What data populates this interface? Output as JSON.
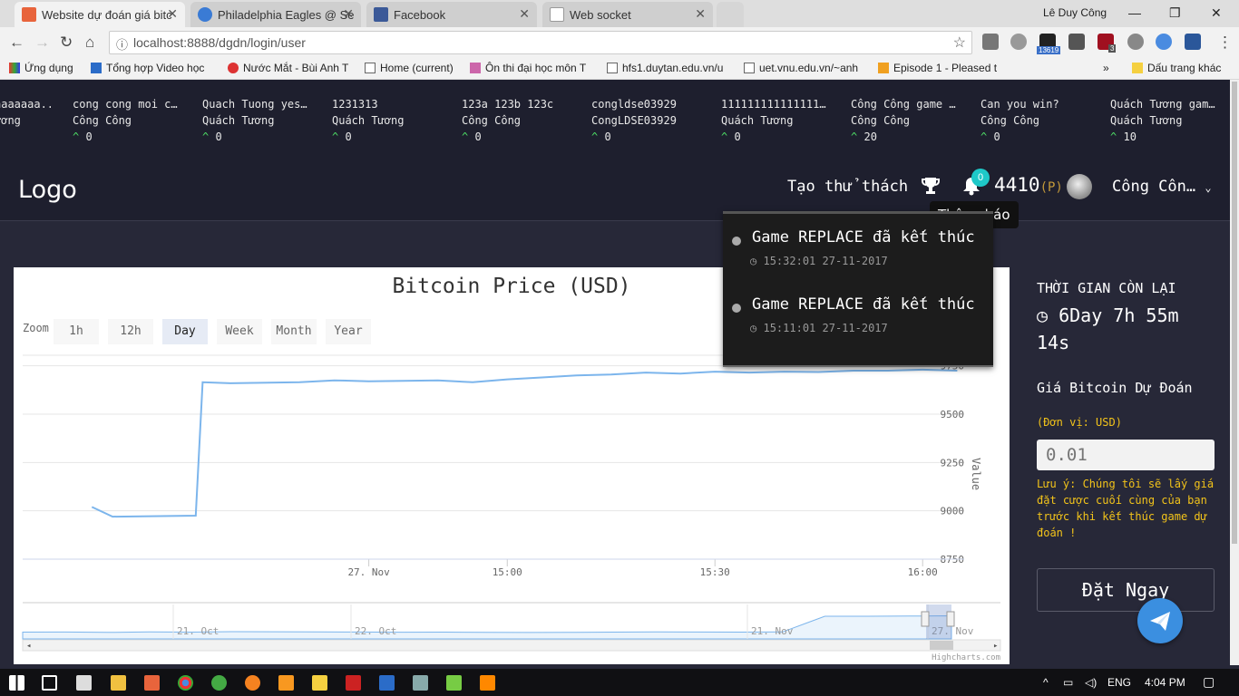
{
  "browser": {
    "tabs": [
      {
        "title": "Website dự đoán giá bitc",
        "color": "#e8643c",
        "active": true
      },
      {
        "title": "Philadelphia Eagles @ Se",
        "color": "#3a7bd5",
        "active": false
      },
      {
        "title": "Facebook",
        "color": "#3b5998",
        "active": false
      },
      {
        "title": "Web socket",
        "color": "#cccccc",
        "active": false
      }
    ],
    "user": "Lê Duy Công",
    "url": "localhost:8888/dgdn/login/user",
    "bookmarks": [
      "Ứng dụng",
      "Tổng hợp Video học",
      "Nước Mắt - Bùi Anh T",
      "Home (current)",
      "Ôn thi đại học môn T",
      "hfs1.duytan.edu.vn/u",
      "uet.vnu.edu.vn/~anh",
      "Episode 1 - Pleased t",
      "Dấu trang khác"
    ],
    "ext_badge": "13619",
    "ext_badge2": "3"
  },
  "ticker": [
    {
      "title": "aaaaaaa...",
      "user": "ương",
      "votes": ""
    },
    {
      "title": "cong cong moi c…",
      "user": "Công Công",
      "votes": "0"
    },
    {
      "title": "Quach Tuong yes…",
      "user": "Quách Tương",
      "votes": "0"
    },
    {
      "title": "1231313",
      "user": "Quách Tương",
      "votes": "0"
    },
    {
      "title": "123a 123b 123c",
      "user": "Công Công",
      "votes": "0"
    },
    {
      "title": "congldse03929",
      "user": "CongLDSE03929",
      "votes": "0"
    },
    {
      "title": "111111111111111…",
      "user": "Quách Tương",
      "votes": "0"
    },
    {
      "title": "Công Công game …",
      "user": "Công Công",
      "votes": "20"
    },
    {
      "title": "Can you win?",
      "user": "Công Công",
      "votes": "0"
    },
    {
      "title": "Quách Tương gam…",
      "user": "Quách Tương",
      "votes": "10"
    }
  ],
  "nav": {
    "logo": "Logo",
    "create": "Tạo thử thách",
    "badge": "0",
    "points": "4410",
    "points_unit": "(P)",
    "user": "Công Côn…",
    "tooltip": "Thông báo"
  },
  "notifications": [
    {
      "title": "Game REPLACE đã kết thúc",
      "time": "15:32:01 27-11-2017"
    },
    {
      "title": "Game REPLACE đã kết thúc",
      "time": "15:11:01 27-11-2017"
    }
  ],
  "chart_data": {
    "type": "line",
    "title": "Bitcoin Price (USD)",
    "zoom_label": "Zoom",
    "zoom_buttons": [
      "1h",
      "12h",
      "Day",
      "Week",
      "Month",
      "Year"
    ],
    "zoom_selected": "Day",
    "ylabel": "Value",
    "ylim": [
      8750,
      9800
    ],
    "yticks": [
      9750,
      9500,
      9250,
      9000,
      8750
    ],
    "xticks": [
      "27. Nov",
      "15:00",
      "15:30",
      "16:00"
    ],
    "xtick_minutes": [
      -20,
      0,
      30,
      60
    ],
    "x_minutes": [
      -60,
      -57,
      -45,
      -44,
      -40,
      -30,
      -25,
      -20,
      -10,
      -5,
      0,
      5,
      10,
      15,
      20,
      25,
      30,
      35,
      40,
      45,
      50,
      55,
      60,
      65
    ],
    "values": [
      9020,
      8970,
      8975,
      9665,
      9660,
      9665,
      9675,
      9670,
      9675,
      9665,
      9680,
      9690,
      9700,
      9705,
      9715,
      9710,
      9720,
      9715,
      9720,
      9718,
      9725,
      9725,
      9730,
      9725
    ],
    "navigator_labels": [
      "21. Oct",
      "22. Oct",
      "21. Nov",
      "27. Nov"
    ],
    "credit": "Highcharts.com",
    "line_color": "#7cb5ec"
  },
  "side": {
    "time_left_label": "THỜI GIAN CÒN LẠI",
    "time_left": "6Day 7h 55m 14s",
    "predict_label": "Giá Bitcoin Dự Đoán",
    "unit": "(Đơn vị: USD)",
    "placeholder": "0.01",
    "note": "Lưu ý: Chúng tôi sẽ lấy giá đặt cược cuối cùng của bạn trước khi kết thúc game dự đoán !",
    "bet_button": "Đặt Ngay"
  },
  "taskbar": {
    "lang": "ENG",
    "time": "4:04 PM"
  }
}
